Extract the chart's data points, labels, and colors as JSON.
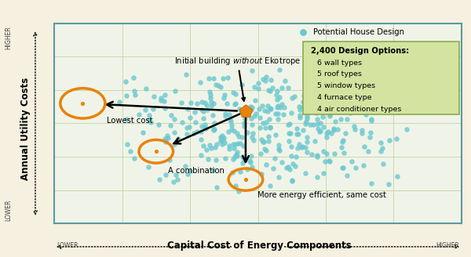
{
  "fig_bg": "#f5f0e0",
  "plot_bg": "#f0f4e8",
  "grid_color": "#c8d8b0",
  "border_color": "#5b9aa0",
  "dot_color": "#6bc8d0",
  "dot_alpha": 0.8,
  "dot_size": 22,
  "orange_color": "#e8820a",
  "initial_point": [
    0.47,
    0.56
  ],
  "lowest_cost_point": [
    0.07,
    0.6
  ],
  "combination_point": [
    0.25,
    0.36
  ],
  "more_efficient_point": [
    0.47,
    0.22
  ],
  "legend_dot_color": "#6bc8d0",
  "legend_text": "Potential House Design",
  "box_title": "2,400 Design Options:",
  "box_lines": [
    "6 wall types",
    "5 roof types",
    "5 window types",
    "4 furnace type",
    "4 air conditioner types"
  ],
  "box_color": "#d4e4a0",
  "box_border": "#8aaa50",
  "xlabel": "Capital Cost of Energy Components",
  "ylabel": "Annual Utility Costs",
  "annotation_initial": "Initial building –– without Ekotrope",
  "annotation_lowest": "Lowest cost",
  "annotation_combination": "A combination",
  "annotation_efficient": "More energy efficient, same cost",
  "seed": 42,
  "n_dots": 380
}
